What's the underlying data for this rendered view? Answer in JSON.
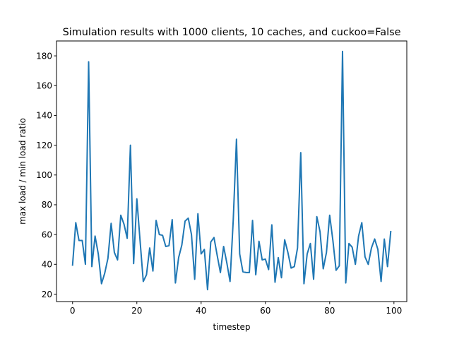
{
  "chart_data": {
    "type": "line",
    "title": "Simulation results with 1000 clients, 10 caches, and cuckoo=False",
    "xlabel": "timestep",
    "ylabel": "max load / min load ratio",
    "xlim": [
      -5,
      104
    ],
    "ylim": [
      15,
      190
    ],
    "xticks": [
      0,
      20,
      40,
      60,
      80,
      100
    ],
    "yticks": [
      20,
      40,
      60,
      80,
      100,
      120,
      140,
      160,
      180
    ],
    "grid": false,
    "line_color": "#1f77b4",
    "series": [
      {
        "x": [
          0,
          1,
          2,
          3,
          4,
          5,
          6,
          7,
          8,
          9,
          10,
          11,
          12,
          13,
          14,
          15,
          16,
          17,
          18,
          19,
          20,
          21,
          22,
          23,
          24,
          25,
          26,
          27,
          28,
          29,
          30,
          31,
          32,
          33,
          34,
          35,
          36,
          37,
          38,
          39,
          40,
          41,
          42,
          43,
          44,
          45,
          46,
          47,
          48,
          49,
          50,
          51,
          52,
          53,
          54,
          55,
          56,
          57,
          58,
          59,
          60,
          61,
          62,
          63,
          64,
          65,
          66,
          67,
          68,
          69,
          70,
          71,
          72,
          73,
          74,
          75,
          76,
          77,
          78,
          79,
          80,
          81,
          82,
          83,
          84,
          85,
          86,
          87,
          88,
          89,
          90,
          91,
          92,
          93,
          94,
          95,
          96,
          97,
          98,
          99
        ],
        "values": [
          39.5,
          68,
          56,
          56,
          40,
          176,
          38.5,
          59,
          47,
          27,
          34,
          44,
          67.5,
          48,
          43,
          73,
          67,
          57.5,
          120,
          40.5,
          84,
          56,
          28.5,
          33,
          51,
          35.5,
          69.5,
          60,
          59.5,
          52,
          52.5,
          70,
          27.5,
          44.5,
          53,
          69,
          71,
          60,
          30,
          74,
          47,
          50,
          23,
          55,
          58,
          46,
          34.5,
          52,
          41,
          28.5,
          70,
          124,
          47,
          35,
          34.5,
          34.5,
          69.5,
          33,
          55.5,
          43,
          43.5,
          36.5,
          66.5,
          28,
          44.5,
          31,
          56.5,
          48,
          37.5,
          38.5,
          51,
          115,
          27,
          47,
          54,
          30,
          72,
          62,
          37,
          48,
          73,
          56,
          36,
          39,
          183,
          27.5,
          54,
          51.5,
          40,
          59,
          68,
          45,
          40,
          51,
          57,
          50,
          28.5,
          57,
          38.5,
          62
        ]
      }
    ]
  }
}
